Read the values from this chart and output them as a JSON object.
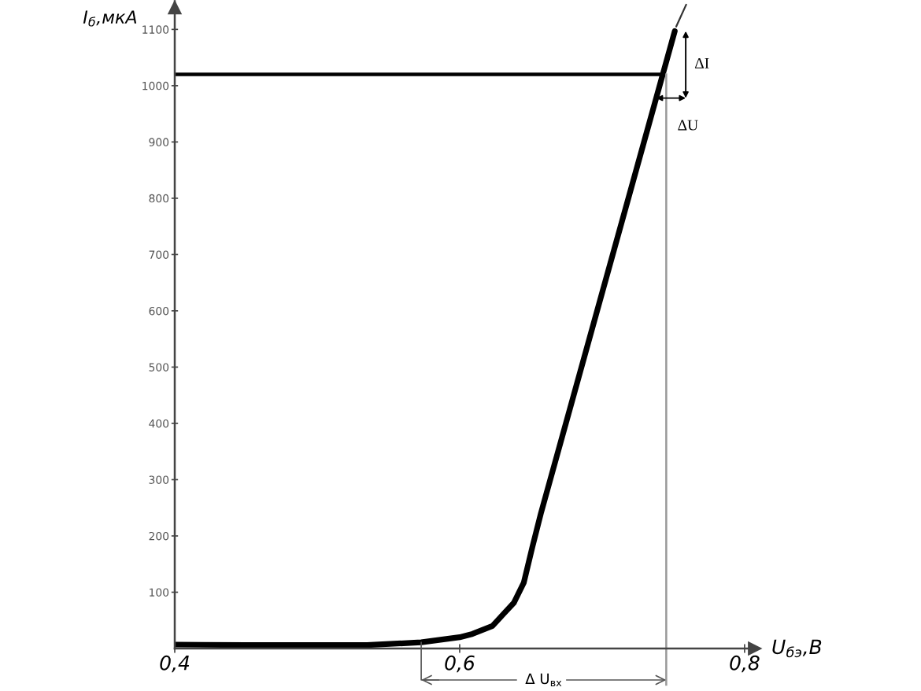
{
  "chart_data": {
    "type": "line",
    "xlabel": "U$_{бэ}$,В",
    "ylabel": "I$_{б}$,мкА",
    "xlim": [
      0.4,
      0.81
    ],
    "ylim": [
      0,
      1150
    ],
    "xticks": [
      {
        "value": 0.4,
        "label": "0,4"
      },
      {
        "value": 0.6,
        "label": "0,6"
      },
      {
        "value": 0.8,
        "label": "0,8"
      }
    ],
    "yticks": [
      100,
      200,
      300,
      400,
      500,
      600,
      700,
      800,
      900,
      1000,
      1100
    ],
    "series": [
      {
        "color": "#000000",
        "x": [
          0.4,
          0.45,
          0.5,
          0.535,
          0.573,
          0.6,
          0.609,
          0.623,
          0.631,
          0.638,
          0.645,
          0.651,
          0.657,
          0.751
        ],
        "values": [
          7,
          6,
          6,
          6,
          11,
          20,
          26,
          40,
          62,
          81,
          117,
          180,
          240,
          1097
        ]
      },
      {
        "color": "#333333",
        "x": [
          0.752,
          0.759
        ],
        "values": [
          1105,
          1144
        ]
      }
    ],
    "ref_lines": [
      {
        "axis": "y",
        "value": 1020,
        "color": "#000000"
      },
      {
        "axis": "x",
        "value": 0.745,
        "color": "#999999"
      }
    ],
    "annotations": [
      {
        "text": "Δ U$_{вх}$",
        "x": 0.573,
        "y": 11
      },
      {
        "text": "ΔI",
        "x": 0.751,
        "y": 1097
      },
      {
        "text": "ΔU",
        "x": 0.738,
        "y": 978
      }
    ],
    "marker": "none",
    "line_style": "solid"
  }
}
